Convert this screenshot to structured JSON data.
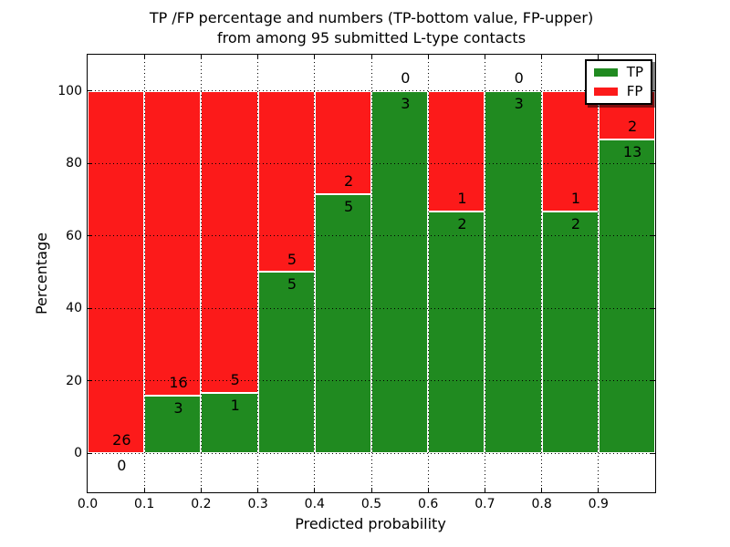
{
  "figure": {
    "title_line1": "TP /FP percentage and numbers (TP-bottom value, FP-upper)",
    "title_line2": "from among 95 submitted L-type contacts"
  },
  "axes": {
    "xlabel": "Predicted probability",
    "ylabel": "Percentage",
    "x_ticks": [
      0.0,
      0.1,
      0.2,
      0.3,
      0.4,
      0.5,
      0.6,
      0.7,
      0.8,
      0.9
    ],
    "x_tick_labels": [
      "0.0",
      "0.1",
      "0.2",
      "0.3",
      "0.4",
      "0.5",
      "0.6",
      "0.7",
      "0.8",
      "0.9"
    ],
    "y_ticks": [
      0,
      20,
      40,
      60,
      80,
      100
    ],
    "y_tick_labels": [
      "0",
      "20",
      "40",
      "60",
      "80",
      "100"
    ]
  },
  "legend": {
    "items": [
      {
        "label": "TP",
        "color": "#208a20"
      },
      {
        "label": "FP",
        "color": "#fc1a1a"
      }
    ]
  },
  "chart_data": {
    "type": "bar",
    "stacked": true,
    "title": "TP /FP percentage and numbers (TP-bottom value, FP-upper) from among 95 submitted L-type contacts",
    "xlabel": "Predicted probability",
    "ylabel": "Percentage",
    "xlim": [
      0.0,
      1.0
    ],
    "ylim": [
      -10.8,
      110.0
    ],
    "grid": "dotted",
    "legend_position": "upper right",
    "total_contacts": 95,
    "bins": [
      [
        0.0,
        0.1
      ],
      [
        0.1,
        0.2
      ],
      [
        0.2,
        0.3
      ],
      [
        0.3,
        0.4
      ],
      [
        0.4,
        0.5
      ],
      [
        0.5,
        0.6
      ],
      [
        0.6,
        0.7
      ],
      [
        0.7,
        0.8
      ],
      [
        0.8,
        0.9
      ],
      [
        0.9,
        1.0
      ]
    ],
    "series": [
      {
        "name": "TP",
        "color": "#208a20",
        "counts": [
          0,
          3,
          1,
          5,
          5,
          3,
          2,
          3,
          2,
          13
        ],
        "pct": [
          0.0,
          15.79,
          16.67,
          50.0,
          71.43,
          100.0,
          66.67,
          100.0,
          66.67,
          86.67
        ]
      },
      {
        "name": "FP",
        "color": "#fc1a1a",
        "counts": [
          26,
          16,
          5,
          5,
          2,
          0,
          1,
          0,
          1,
          2
        ],
        "pct": [
          100.0,
          84.21,
          83.33,
          50.0,
          28.57,
          0.0,
          33.33,
          0.0,
          33.33,
          13.33
        ]
      }
    ],
    "label_note": "TP count printed below segment boundary, FP count printed above segment boundary"
  }
}
